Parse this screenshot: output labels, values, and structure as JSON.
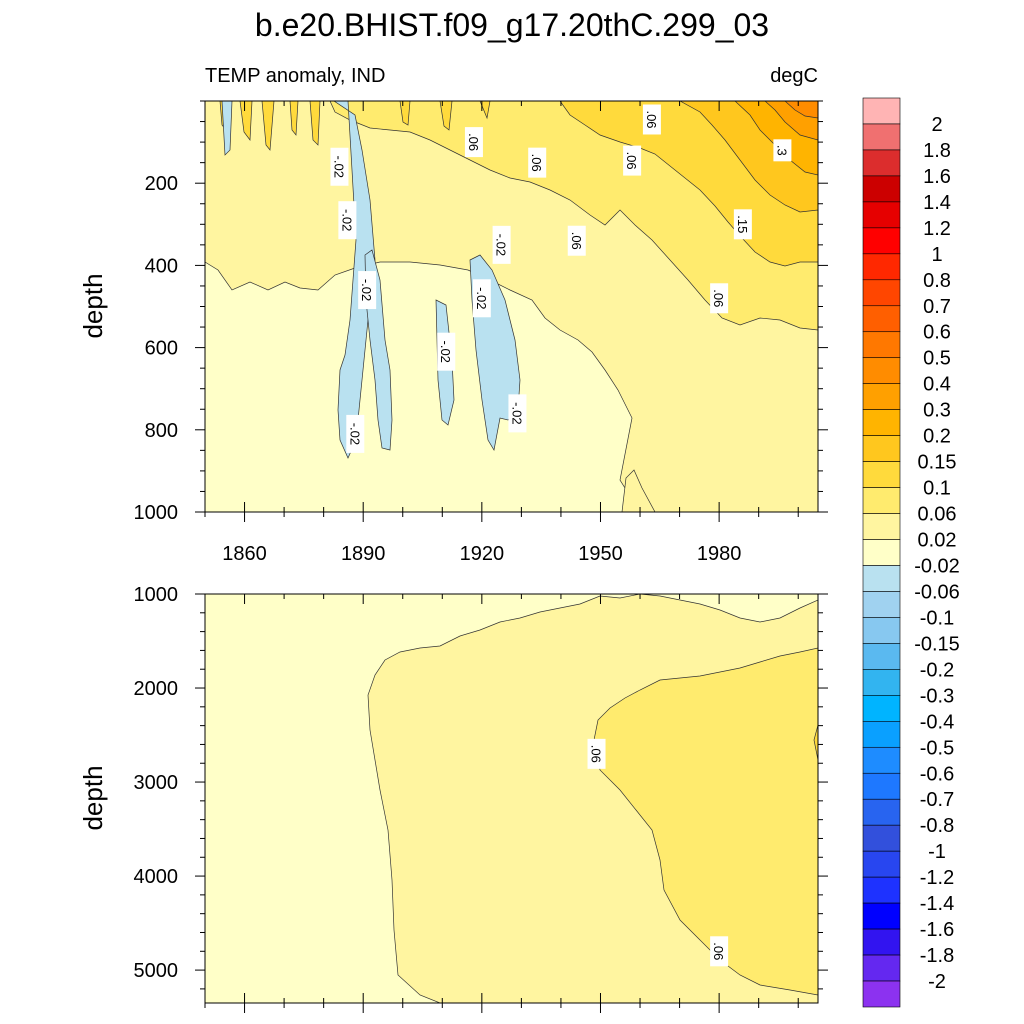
{
  "title": "b.e20.BHIST.f09_g17.20thC.299_03",
  "left_string": "TEMP anomaly, IND",
  "right_string": "degC",
  "chart_data": {
    "type": "heatmap",
    "variable": "TEMP anomaly",
    "region": "IND",
    "units": "degC",
    "x_range": [
      1850,
      2005
    ],
    "x_ticks": [
      1860,
      1890,
      1920,
      1950,
      1980
    ],
    "top_panel": {
      "ylabel": "depth",
      "ylim": [
        0,
        1000
      ],
      "y_ticks": [
        200,
        400,
        600,
        800,
        1000
      ],
      "contour_labels": [
        {
          "text": "-.02",
          "x": 1884,
          "y": 160
        },
        {
          "text": "-.02",
          "x": 1886,
          "y": 290
        },
        {
          "text": "-.02",
          "x": 1891,
          "y": 460
        },
        {
          "text": "-.02",
          "x": 1911,
          "y": 610
        },
        {
          "text": "-.02",
          "x": 1888,
          "y": 810
        },
        {
          "text": "-.02",
          "x": 1920,
          "y": 480
        },
        {
          "text": "-.02",
          "x": 1925,
          "y": 350
        },
        {
          "text": "-.02",
          "x": 1929,
          "y": 760
        },
        {
          "text": ".06",
          "x": 1918,
          "y": 100
        },
        {
          "text": ".06",
          "x": 1934,
          "y": 150
        },
        {
          "text": ".06",
          "x": 1944,
          "y": 340
        },
        {
          "text": ".06",
          "x": 1958,
          "y": 145
        },
        {
          "text": ".06",
          "x": 1963,
          "y": 45
        },
        {
          "text": ".06",
          "x": 1980,
          "y": 480
        },
        {
          "text": ".15",
          "x": 1986,
          "y": 300
        },
        {
          "text": ".3",
          "x": 1996,
          "y": 120
        }
      ]
    },
    "bottom_panel": {
      "ylabel": "depth",
      "ylim": [
        1000,
        5350
      ],
      "y_ticks": [
        1000,
        2000,
        3000,
        4000,
        5000
      ],
      "contour_labels": [
        {
          "text": ".06",
          "x": 1949,
          "y": 2700
        },
        {
          "text": ".06",
          "x": 1980,
          "y": 4800
        }
      ]
    },
    "colorbar": {
      "levels": [
        "2",
        "1.8",
        "1.6",
        "1.4",
        "1.2",
        "1",
        "0.8",
        "0.7",
        "0.6",
        "0.5",
        "0.4",
        "0.3",
        "0.2",
        "0.15",
        "0.1",
        "0.06",
        "0.02",
        "-0.02",
        "-0.06",
        "-0.1",
        "-0.15",
        "-0.2",
        "-0.3",
        "-0.4",
        "-0.5",
        "-0.6",
        "-0.7",
        "-0.8",
        "-1",
        "-1.2",
        "-1.4",
        "-1.6",
        "-1.8",
        "-2"
      ],
      "colors": [
        "#ffb4b4",
        "#f07070",
        "#dc2d2d",
        "#cc0000",
        "#e60000",
        "#ff0000",
        "#ff2800",
        "#ff4600",
        "#ff5f00",
        "#ff7800",
        "#ff8c00",
        "#ffa000",
        "#ffb400",
        "#ffc71e",
        "#ffda3c",
        "#ffeb6e",
        "#fff5a0",
        "#ffffc8",
        "#b9e1f0",
        "#a0d2f0",
        "#87c8f0",
        "#5ab9f0",
        "#32b4f0",
        "#00b4ff",
        "#0aa0ff",
        "#1e8cff",
        "#1e78ff",
        "#2864f0",
        "#3250dc",
        "#2846f0",
        "#1e32ff",
        "#0000ff",
        "#3214f0",
        "#6428f0",
        "#8c32f0"
      ]
    }
  }
}
